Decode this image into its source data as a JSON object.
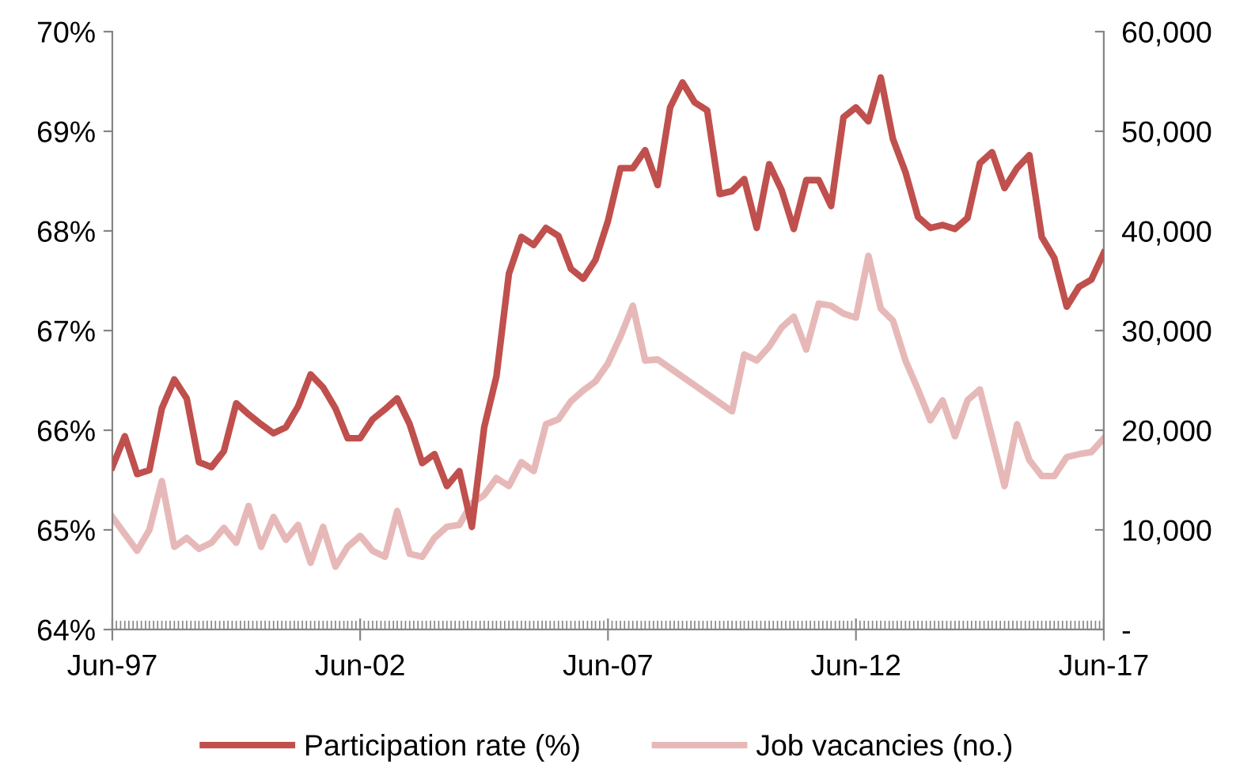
{
  "chart_data": {
    "type": "line",
    "xlim": [
      "1997-06",
      "2017-06"
    ],
    "xticks": [
      {
        "value": "1997-06",
        "label": "Jun-97"
      },
      {
        "value": "2002-06",
        "label": "Jun-02"
      },
      {
        "value": "2007-06",
        "label": "Jun-07"
      },
      {
        "value": "2012-06",
        "label": "Jun-12"
      },
      {
        "value": "2017-06",
        "label": "Jun-17"
      }
    ],
    "ylim": [
      64,
      70
    ],
    "yticks": [
      {
        "value": 64,
        "label": "64%"
      },
      {
        "value": 65,
        "label": "65%"
      },
      {
        "value": 66,
        "label": "66%"
      },
      {
        "value": 67,
        "label": "67%"
      },
      {
        "value": 68,
        "label": "68%"
      },
      {
        "value": 69,
        "label": "69%"
      },
      {
        "value": 70,
        "label": "70%"
      }
    ],
    "y2lim": [
      0,
      60000
    ],
    "y2ticks": [
      {
        "value": 0,
        "label": "-"
      },
      {
        "value": 10000,
        "label": "10,000"
      },
      {
        "value": 20000,
        "label": "20,000"
      },
      {
        "value": 30000,
        "label": "30,000"
      },
      {
        "value": 40000,
        "label": "40,000"
      },
      {
        "value": 50000,
        "label": "50,000"
      },
      {
        "value": 60000,
        "label": "60,000"
      }
    ],
    "legend": "bottom",
    "grid": false,
    "series": [
      {
        "name": "Participation rate (%)",
        "color": "#c0504d",
        "x": [
          "1997-06",
          "1997-09",
          "1997-12",
          "1998-03",
          "1998-06",
          "1998-09",
          "1998-12",
          "1999-03",
          "1999-06",
          "1999-09",
          "1999-12",
          "2000-03",
          "2000-06",
          "2000-09",
          "2000-12",
          "2001-03",
          "2001-06",
          "2001-09",
          "2001-12",
          "2002-03",
          "2002-06",
          "2002-09",
          "2002-12",
          "2003-03",
          "2003-06",
          "2003-09",
          "2003-12",
          "2004-03",
          "2004-06",
          "2004-09",
          "2004-12",
          "2005-03",
          "2005-06",
          "2005-09",
          "2005-12",
          "2006-03",
          "2006-06",
          "2006-09",
          "2006-12",
          "2007-03",
          "2007-06",
          "2007-09",
          "2007-12",
          "2008-03",
          "2008-06",
          "2008-09",
          "2008-12",
          "2009-03",
          "2009-06",
          "2009-09",
          "2009-12",
          "2010-03",
          "2010-06",
          "2010-09",
          "2010-12",
          "2011-03",
          "2011-06",
          "2011-09",
          "2011-12",
          "2012-03",
          "2012-06",
          "2012-09",
          "2012-12",
          "2013-03",
          "2013-06",
          "2013-09",
          "2013-12",
          "2014-03",
          "2014-06",
          "2014-09",
          "2014-12",
          "2015-03",
          "2015-06",
          "2015-09",
          "2015-12",
          "2016-03",
          "2016-06",
          "2016-09",
          "2016-12",
          "2017-03",
          "2017-06"
        ],
        "values": [
          65.63,
          65.94,
          65.56,
          65.6,
          66.22,
          66.51,
          66.32,
          65.68,
          65.63,
          65.79,
          66.27,
          66.16,
          66.06,
          65.97,
          66.03,
          66.24,
          66.56,
          66.43,
          66.22,
          65.92,
          65.92,
          66.11,
          66.21,
          66.32,
          66.06,
          65.67,
          65.76,
          65.44,
          65.59,
          65.03,
          66.03,
          66.54,
          67.57,
          67.94,
          67.86,
          68.03,
          67.95,
          67.62,
          67.52,
          67.71,
          68.1,
          68.63,
          68.63,
          68.81,
          68.46,
          69.24,
          69.49,
          69.29,
          69.21,
          68.37,
          68.4,
          68.52,
          68.03,
          68.67,
          68.41,
          68.02,
          68.51,
          68.51,
          68.25,
          69.14,
          69.24,
          69.1,
          69.54,
          68.92,
          68.59,
          68.14,
          68.03,
          68.06,
          68.02,
          68.13,
          68.68,
          68.79,
          68.43,
          68.63,
          68.76,
          67.94,
          67.73,
          67.24,
          67.44,
          67.51,
          67.78
        ]
      },
      {
        "name": "Job vacancies (no.)",
        "color": "#e6b9b8",
        "axis": "y2",
        "x": [
          "1997-06",
          "1997-12",
          "1998-03",
          "1998-06",
          "1998-09",
          "1998-12",
          "1999-03",
          "1999-06",
          "1999-09",
          "1999-12",
          "2000-03",
          "2000-06",
          "2000-09",
          "2000-12",
          "2001-03",
          "2001-06",
          "2001-09",
          "2001-12",
          "2002-03",
          "2002-06",
          "2002-09",
          "2002-12",
          "2003-03",
          "2003-06",
          "2003-09",
          "2003-12",
          "2004-03",
          "2004-06",
          "2004-09",
          "2004-12",
          "2005-03",
          "2005-06",
          "2005-09",
          "2005-12",
          "2006-03",
          "2006-06",
          "2006-09",
          "2006-12",
          "2007-03",
          "2007-06",
          "2007-09",
          "2007-12",
          "2008-03",
          "2008-06",
          "2009-12",
          "2010-03",
          "2010-06",
          "2010-09",
          "2010-12",
          "2011-03",
          "2011-06",
          "2011-09",
          "2011-12",
          "2012-03",
          "2012-06",
          "2012-09",
          "2012-12",
          "2013-03",
          "2013-06",
          "2013-09",
          "2013-12",
          "2014-03",
          "2014-06",
          "2014-09",
          "2014-12",
          "2015-06",
          "2015-09",
          "2015-12",
          "2016-03",
          "2016-06",
          "2016-09",
          "2016-12",
          "2017-03",
          "2017-06"
        ],
        "values": [
          11300,
          7900,
          10000,
          14900,
          8300,
          9200,
          8100,
          8700,
          10200,
          8700,
          12400,
          8300,
          11300,
          9000,
          10500,
          6700,
          10300,
          6300,
          8300,
          9400,
          7900,
          7300,
          11900,
          7600,
          7300,
          9200,
          10300,
          10500,
          12700,
          13500,
          15200,
          14400,
          16800,
          15900,
          20600,
          21100,
          22900,
          24000,
          24900,
          26700,
          29400,
          32500,
          27000,
          27100,
          21900,
          27600,
          27000,
          28400,
          30300,
          31400,
          28100,
          32700,
          32500,
          31700,
          31300,
          37500,
          32200,
          31000,
          27000,
          24100,
          21000,
          23000,
          19400,
          23000,
          24100,
          14400,
          20600,
          17000,
          15400,
          15400,
          17300,
          17600,
          17800,
          19200
        ]
      }
    ]
  }
}
